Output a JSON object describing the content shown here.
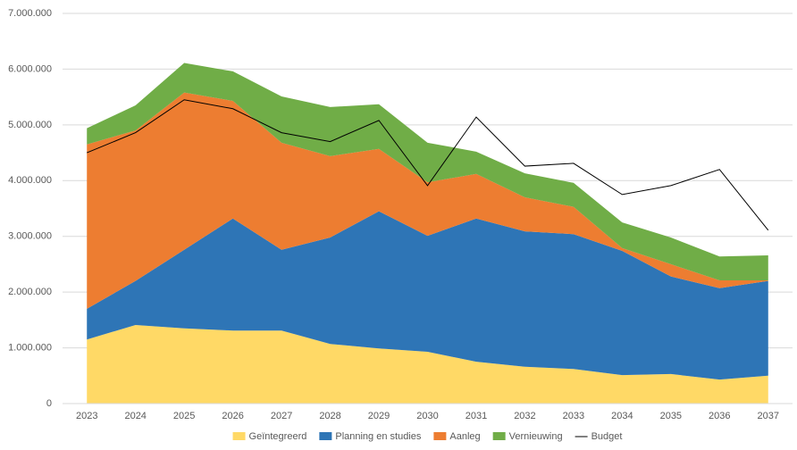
{
  "chart_data": {
    "type": "stacked-area",
    "categories": [
      "2023",
      "2024",
      "2025",
      "2026",
      "2027",
      "2028",
      "2029",
      "2030",
      "2031",
      "2032",
      "2033",
      "2034",
      "2035",
      "2036",
      "2037"
    ],
    "series": [
      {
        "name": "Geïntegreerd",
        "color": "#ffd966",
        "values": [
          1150000,
          1410000,
          1350000,
          1310000,
          1310000,
          1070000,
          990000,
          930000,
          750000,
          660000,
          620000,
          510000,
          530000,
          430000,
          500000
        ]
      },
      {
        "name": "Planning en studies",
        "color": "#2e75b6",
        "values": [
          550000,
          790000,
          1410000,
          2010000,
          1450000,
          1910000,
          2460000,
          2080000,
          2570000,
          2430000,
          2420000,
          2230000,
          1750000,
          1640000,
          1700000
        ]
      },
      {
        "name": "Aanleg",
        "color": "#ed7d31",
        "values": [
          2950000,
          2700000,
          2820000,
          2110000,
          1920000,
          1460000,
          1120000,
          960000,
          800000,
          610000,
          490000,
          50000,
          220000,
          140000,
          10000
        ]
      },
      {
        "name": "Vernieuwing",
        "color": "#70ad47",
        "values": [
          290000,
          450000,
          530000,
          530000,
          830000,
          880000,
          800000,
          710000,
          400000,
          430000,
          430000,
          460000,
          480000,
          430000,
          450000
        ]
      },
      {
        "name": "Budget",
        "color": "#000000",
        "type": "line",
        "values": [
          4500000,
          4860000,
          5450000,
          5290000,
          4860000,
          4700000,
          5080000,
          3910000,
          5140000,
          4260000,
          4310000,
          3750000,
          3910000,
          4200000,
          3110000
        ]
      }
    ],
    "ylim": [
      0,
      7000000
    ],
    "yticks": [
      0,
      {
        "value": 1000000,
        "label": "1.000.000"
      },
      {
        "value": 2000000,
        "label": "2.000.000"
      },
      {
        "value": 3000000,
        "label": "3.000.000"
      },
      {
        "value": 4000000,
        "label": "4.000.000"
      },
      {
        "value": 5000000,
        "label": "5.000.000"
      },
      {
        "value": 6000000,
        "label": "6.000.000"
      },
      {
        "value": 7000000,
        "label": "7.000.000"
      }
    ],
    "grid": true,
    "legend": "bottom"
  }
}
